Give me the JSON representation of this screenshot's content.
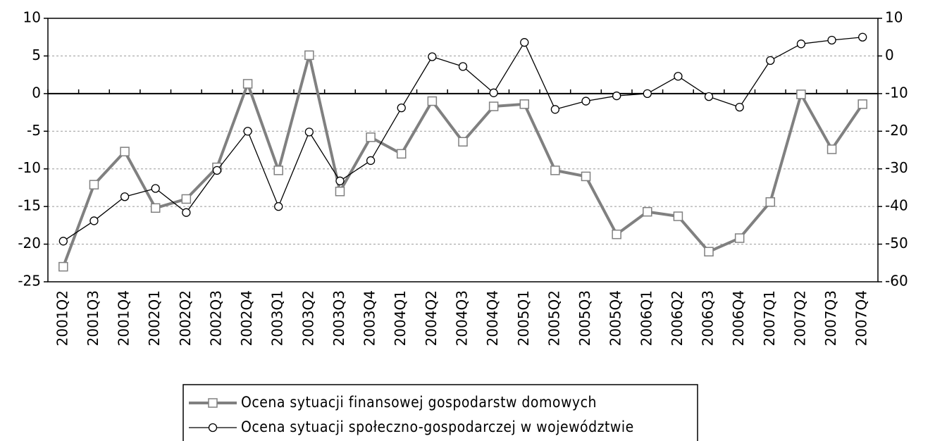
{
  "chart_data": {
    "type": "line",
    "categories": [
      "2001Q2",
      "2001Q3",
      "2001Q4",
      "2002Q1",
      "2002Q2",
      "2002Q3",
      "2002Q4",
      "2003Q1",
      "2003Q2",
      "2003Q3",
      "2003Q4",
      "2004Q1",
      "2004Q2",
      "2004Q3",
      "2004Q4",
      "2005Q1",
      "2005Q2",
      "2005Q3",
      "2005Q4",
      "2006Q1",
      "2006Q2",
      "2006Q3",
      "2006Q4",
      "2007Q1",
      "2007Q2",
      "2007Q3",
      "2007Q4"
    ],
    "series": [
      {
        "name": "Ocena sytuacji finansowej gospodarstw domowych",
        "color": "#808080",
        "marker": "square",
        "values": [
          -23,
          -12.1,
          -7.7,
          -15.2,
          -14,
          -9.8,
          1.3,
          -10.2,
          5.1,
          -13,
          -5.8,
          -8,
          -1,
          -6.4,
          -1.7,
          -1.4,
          -10.2,
          -11,
          -18.7,
          -15.7,
          -16.3,
          -21,
          -19.2,
          -14.4,
          -0.1,
          -7.4,
          -1.4
        ]
      },
      {
        "name": "Ocena sytuacji społeczno-gospodarczej w województwie",
        "color": "#000000",
        "marker": "circle",
        "axis": "y2",
        "values": [
          -49.2,
          -43.8,
          -37.4,
          -35.2,
          -41.6,
          -30.4,
          -20,
          -40,
          -20.2,
          -33.2,
          -27.8,
          -13.8,
          -0.2,
          -2.8,
          -9.8,
          3.6,
          -14.2,
          -12,
          -10.6,
          -10,
          -5.4,
          -10.8,
          -13.6,
          -1.2,
          3.2,
          4.2,
          5
        ]
      }
    ],
    "ylim": [
      -25,
      10
    ],
    "yticks": [
      -25,
      -20,
      -15,
      -10,
      -5,
      0,
      5,
      10
    ],
    "y2lim": [
      -60,
      10
    ],
    "y2ticks": [
      -60,
      -50,
      -40,
      -30,
      -20,
      -10,
      0,
      10
    ],
    "grid": true,
    "legend": "bottom"
  }
}
